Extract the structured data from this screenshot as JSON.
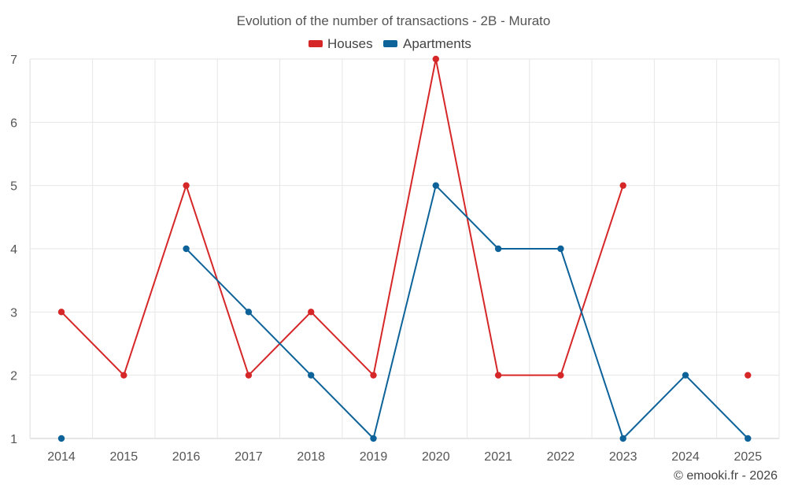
{
  "chart_data": {
    "type": "line",
    "title": "Evolution of the number of transactions - 2B - Murato",
    "xlabel": "",
    "ylabel": "",
    "categories": [
      "2014",
      "2015",
      "2016",
      "2017",
      "2018",
      "2019",
      "2020",
      "2021",
      "2022",
      "2023",
      "2024",
      "2025"
    ],
    "ylim": [
      1,
      7
    ],
    "yticks": [
      "1",
      "2",
      "3",
      "4",
      "5",
      "6",
      "7"
    ],
    "grid": true,
    "legend_position": "top-center",
    "series": [
      {
        "name": "Houses",
        "color": "#d62728",
        "values": [
          3,
          2,
          5,
          2,
          3,
          2,
          7,
          2,
          2,
          5,
          null,
          2
        ]
      },
      {
        "name": "Apartments",
        "color": "#0d6399",
        "values": [
          1,
          null,
          4,
          3,
          2,
          1,
          5,
          4,
          4,
          1,
          2,
          1
        ]
      }
    ]
  },
  "credit": "© emooki.fr - 2026"
}
